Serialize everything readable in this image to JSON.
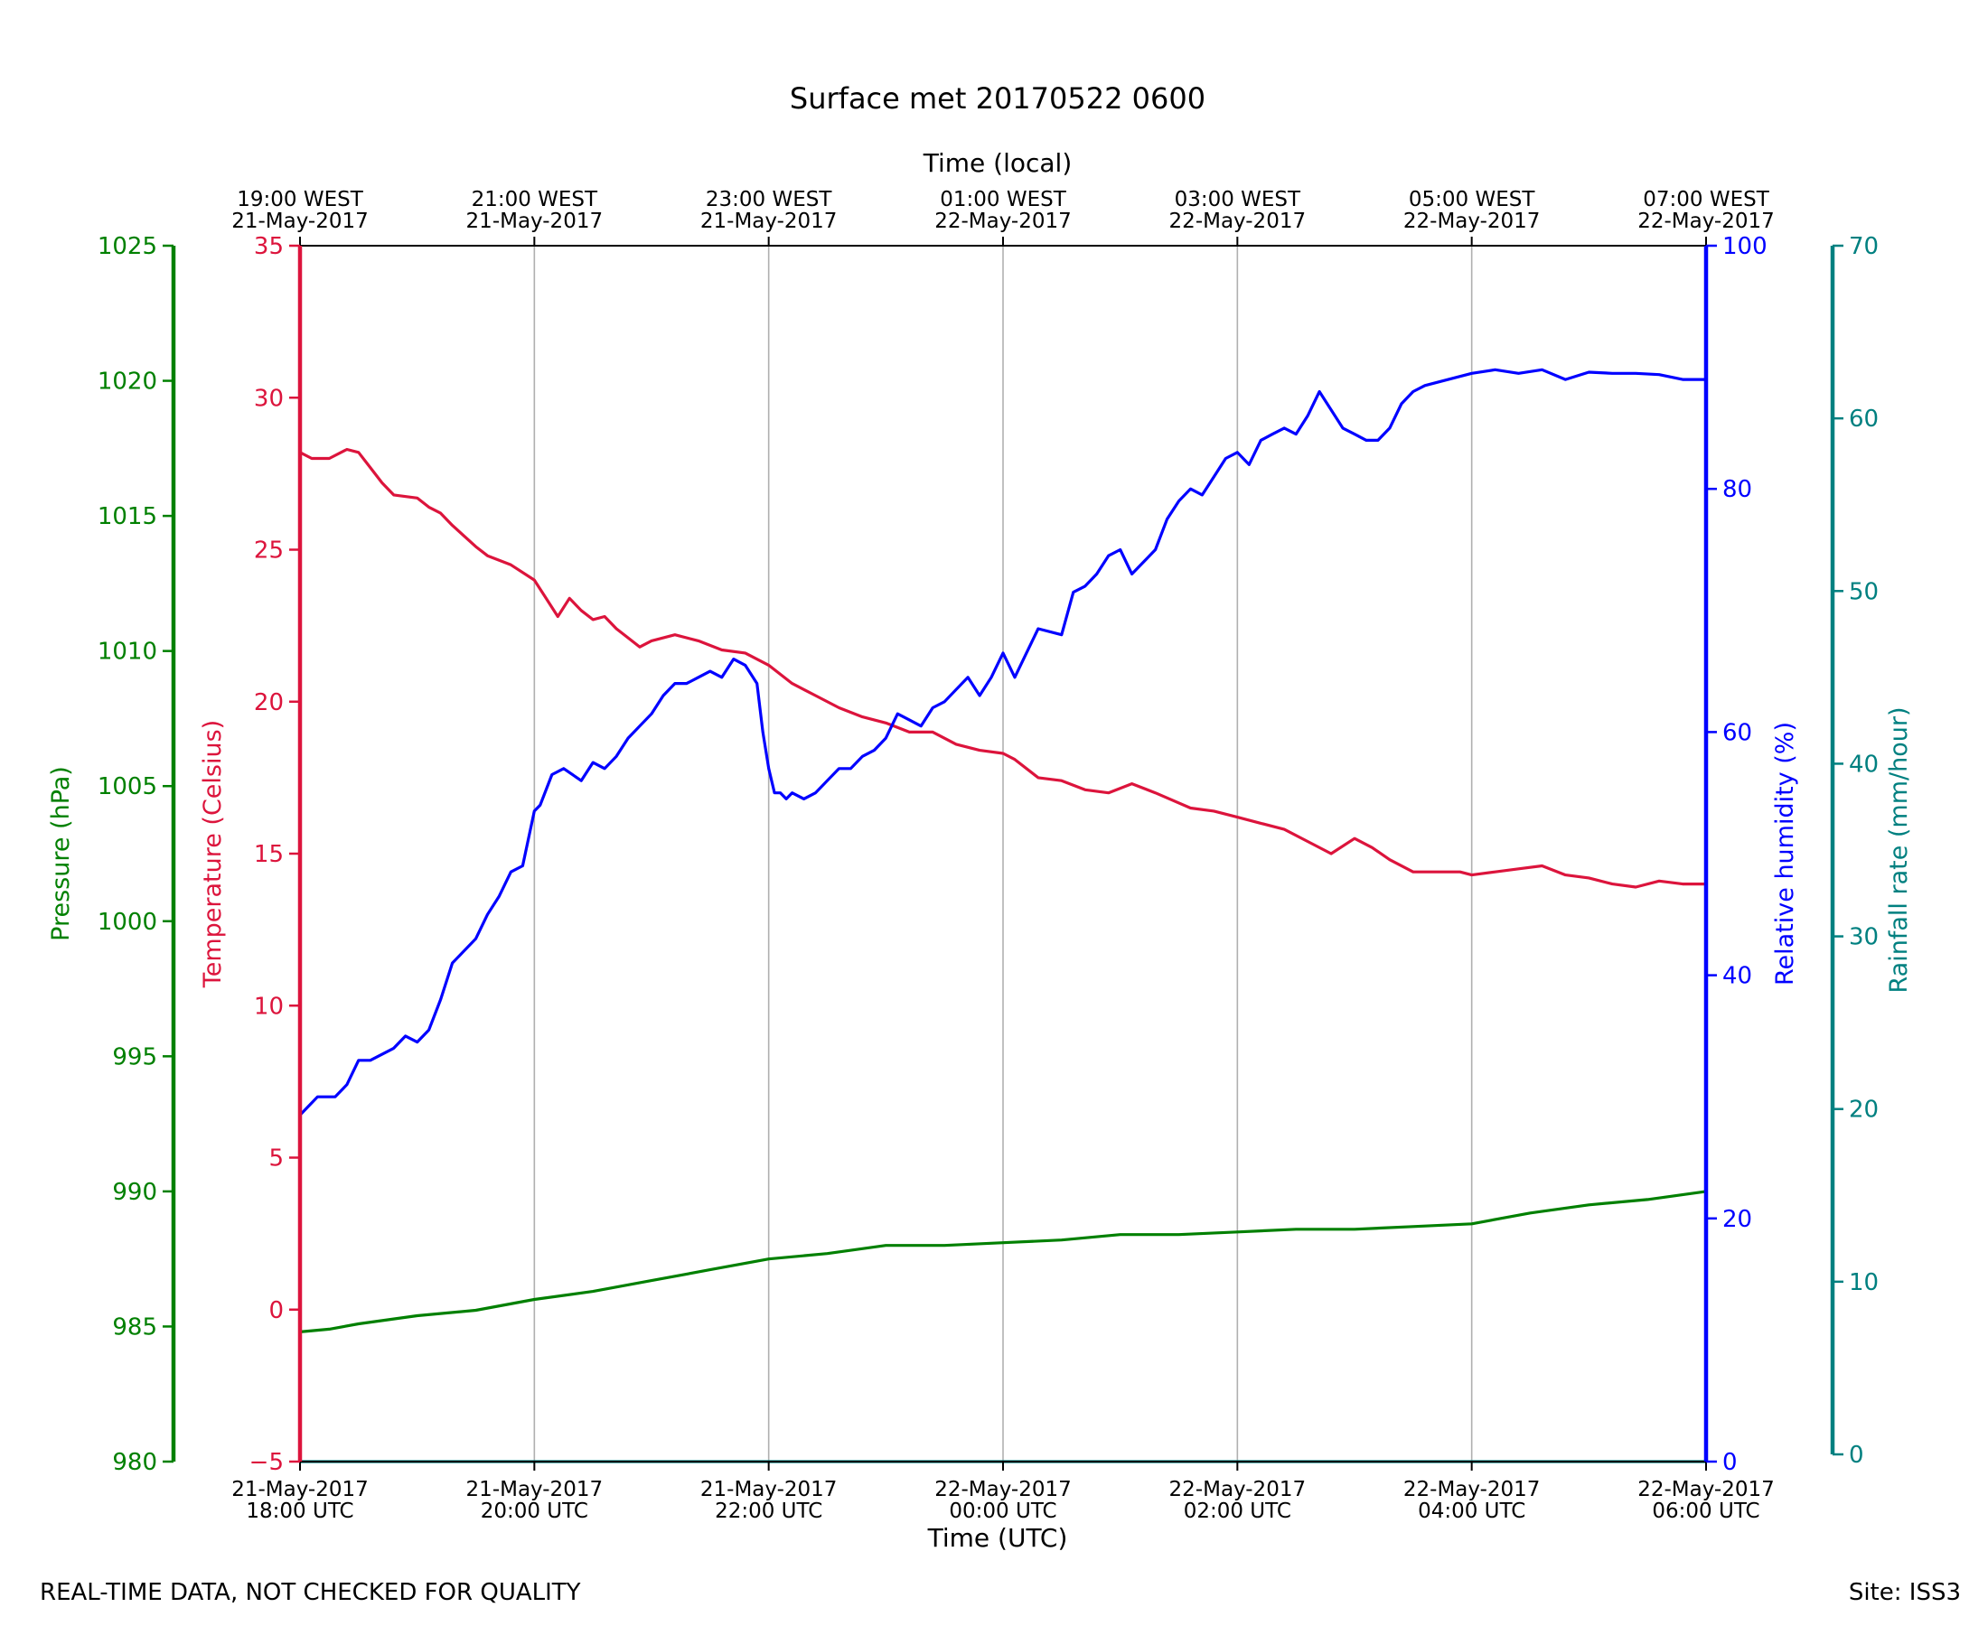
{
  "chart_data": {
    "type": "line",
    "title": "Surface met 20170522 0600",
    "top_axis_label": "Time (local)",
    "xlabel": "Time (UTC)",
    "x_ticks_utc": [
      {
        "hour": 0,
        "date": "21-May-2017",
        "time": "18:00 UTC"
      },
      {
        "hour": 2,
        "date": "21-May-2017",
        "time": "20:00 UTC"
      },
      {
        "hour": 4,
        "date": "21-May-2017",
        "time": "22:00 UTC"
      },
      {
        "hour": 6,
        "date": "22-May-2017",
        "time": "00:00 UTC"
      },
      {
        "hour": 8,
        "date": "22-May-2017",
        "time": "02:00 UTC"
      },
      {
        "hour": 10,
        "date": "22-May-2017",
        "time": "04:00 UTC"
      },
      {
        "hour": 12,
        "date": "22-May-2017",
        "time": "06:00 UTC"
      }
    ],
    "x_ticks_local": [
      {
        "hour": 0,
        "time": "19:00 WEST",
        "date": "21-May-2017"
      },
      {
        "hour": 2,
        "time": "21:00 WEST",
        "date": "21-May-2017"
      },
      {
        "hour": 4,
        "time": "23:00 WEST",
        "date": "21-May-2017"
      },
      {
        "hour": 6,
        "time": "01:00 WEST",
        "date": "22-May-2017"
      },
      {
        "hour": 8,
        "time": "03:00 WEST",
        "date": "22-May-2017"
      },
      {
        "hour": 10,
        "time": "05:00 WEST",
        "date": "22-May-2017"
      },
      {
        "hour": 12,
        "time": "07:00 WEST",
        "date": "22-May-2017"
      }
    ],
    "xlim": [
      0,
      12
    ],
    "grid_x": true,
    "axes": {
      "pressure": {
        "label": "Pressure (hPa)",
        "ylim": [
          980,
          1025
        ],
        "ticks": [
          980,
          985,
          990,
          995,
          1000,
          1005,
          1010,
          1015,
          1020,
          1025
        ],
        "color": "#008000"
      },
      "temperature": {
        "label": "Temperature (Celsius)",
        "ylim": [
          -5,
          35
        ],
        "ticks": [
          -5,
          0,
          5,
          10,
          15,
          20,
          25,
          30,
          35
        ],
        "color": "#dc143c"
      },
      "humidity": {
        "label": "Relative humidity (%)",
        "ylim": [
          0,
          100
        ],
        "ticks": [
          0,
          20,
          40,
          60,
          80,
          100
        ],
        "color": "#0000ff"
      },
      "rainfall": {
        "label": "Rainfall rate (mm/hour)",
        "ylim": [
          0,
          70
        ],
        "ticks": [
          0,
          10,
          20,
          30,
          40,
          50,
          60,
          70
        ],
        "color": "#008080"
      }
    },
    "series": [
      {
        "axis": "temperature",
        "color": "#dc143c",
        "x": [
          0,
          0.1,
          0.25,
          0.4,
          0.5,
          0.6,
          0.7,
          0.8,
          1.0,
          1.1,
          1.2,
          1.3,
          1.5,
          1.6,
          1.8,
          2.0,
          2.1,
          2.2,
          2.3,
          2.4,
          2.5,
          2.6,
          2.7,
          2.8,
          2.9,
          3.0,
          3.1,
          3.2,
          3.4,
          3.6,
          3.8,
          4.0,
          4.2,
          4.4,
          4.6,
          4.8,
          5.0,
          5.2,
          5.4,
          5.6,
          5.8,
          6.0,
          6.1,
          6.3,
          6.5,
          6.7,
          6.9,
          7.1,
          7.3,
          7.6,
          7.8,
          8.0,
          8.2,
          8.4,
          8.6,
          8.8,
          9.0,
          9.15,
          9.3,
          9.5,
          9.7,
          9.9,
          10.0,
          10.2,
          10.4,
          10.6,
          10.8,
          11.0,
          11.2,
          11.4,
          11.6,
          11.8,
          12.0
        ],
        "values": [
          28.2,
          28.0,
          28.0,
          28.3,
          28.2,
          27.7,
          27.2,
          26.8,
          26.7,
          26.4,
          26.2,
          25.8,
          25.1,
          24.8,
          24.5,
          24.0,
          23.4,
          22.8,
          23.4,
          23.0,
          22.7,
          22.8,
          22.4,
          22.1,
          21.8,
          22.0,
          22.1,
          22.2,
          22.0,
          21.7,
          21.6,
          21.2,
          20.6,
          20.2,
          19.8,
          19.5,
          19.3,
          19.0,
          19.0,
          18.6,
          18.4,
          18.3,
          18.1,
          17.5,
          17.4,
          17.1,
          17.0,
          17.3,
          17.0,
          16.5,
          16.4,
          16.2,
          16.0,
          15.8,
          15.4,
          15.0,
          15.5,
          15.2,
          14.8,
          14.4,
          14.4,
          14.4,
          14.3,
          14.4,
          14.5,
          14.6,
          14.3,
          14.2,
          14.0,
          13.9,
          14.1,
          14.0,
          14.0
        ]
      },
      {
        "axis": "humidity",
        "color": "#0000ff",
        "x": [
          0,
          0.15,
          0.3,
          0.4,
          0.5,
          0.6,
          0.8,
          0.9,
          1.0,
          1.1,
          1.2,
          1.3,
          1.4,
          1.5,
          1.6,
          1.7,
          1.8,
          1.9,
          2.0,
          2.05,
          2.15,
          2.25,
          2.4,
          2.5,
          2.6,
          2.7,
          2.8,
          2.9,
          3.0,
          3.1,
          3.2,
          3.3,
          3.4,
          3.5,
          3.6,
          3.7,
          3.8,
          3.9,
          3.95,
          4.0,
          4.05,
          4.1,
          4.15,
          4.2,
          4.3,
          4.4,
          4.5,
          4.6,
          4.7,
          4.8,
          4.9,
          5.0,
          5.1,
          5.2,
          5.3,
          5.4,
          5.5,
          5.6,
          5.7,
          5.8,
          5.9,
          6.0,
          6.1,
          6.2,
          6.3,
          6.5,
          6.6,
          6.7,
          6.8,
          6.9,
          7.0,
          7.1,
          7.2,
          7.3,
          7.4,
          7.5,
          7.6,
          7.7,
          7.8,
          7.9,
          8.0,
          8.1,
          8.2,
          8.3,
          8.4,
          8.5,
          8.6,
          8.7,
          8.8,
          8.9,
          9.0,
          9.1,
          9.2,
          9.3,
          9.4,
          9.5,
          9.6,
          9.8,
          10.0,
          10.2,
          10.4,
          10.6,
          10.8,
          11.0,
          11.2,
          11.4,
          11.6,
          11.8,
          12.0
        ],
        "values": [
          28.5,
          30.0,
          30.0,
          31.0,
          33.0,
          33.0,
          34.0,
          35.0,
          34.5,
          35.5,
          38.0,
          41.0,
          42.0,
          43.0,
          45.0,
          46.5,
          48.5,
          49.0,
          53.5,
          54.0,
          56.5,
          57.0,
          56.0,
          57.5,
          57.0,
          58.0,
          59.5,
          60.5,
          61.5,
          63.0,
          64.0,
          64.0,
          64.5,
          65.0,
          64.5,
          66.0,
          65.5,
          64.0,
          60.0,
          57.0,
          55.0,
          55.0,
          54.5,
          55.0,
          54.5,
          55.0,
          56.0,
          57.0,
          57.0,
          58.0,
          58.5,
          59.5,
          61.5,
          61.0,
          60.5,
          62.0,
          62.5,
          63.5,
          64.5,
          63.0,
          64.5,
          66.5,
          64.5,
          66.5,
          68.5,
          68.0,
          71.5,
          72.0,
          73.0,
          74.5,
          75.0,
          73.0,
          74.0,
          75.0,
          77.5,
          79.0,
          80.0,
          79.5,
          81.0,
          82.5,
          83.0,
          82.0,
          84.0,
          84.5,
          85.0,
          84.5,
          86.0,
          88.0,
          86.5,
          85.0,
          84.5,
          84.0,
          84.0,
          85.0,
          87.0,
          88.0,
          88.5,
          89.0,
          89.5,
          89.8,
          89.5,
          89.8,
          89.0,
          89.6,
          89.5,
          89.5,
          89.4,
          89.0,
          89.0
        ]
      },
      {
        "axis": "pressure",
        "color": "#008000",
        "x": [
          0,
          0.25,
          0.5,
          1.0,
          1.5,
          2.0,
          2.5,
          3.0,
          3.5,
          4.0,
          4.5,
          5.0,
          5.5,
          6.0,
          6.5,
          7.0,
          7.5,
          8.0,
          8.5,
          9.0,
          9.5,
          10.0,
          10.5,
          11.0,
          11.5,
          12.0
        ],
        "values": [
          984.8,
          984.9,
          985.1,
          985.4,
          985.6,
          986.0,
          986.3,
          986.7,
          987.1,
          987.5,
          987.7,
          988.0,
          988.0,
          988.1,
          988.2,
          988.4,
          988.4,
          988.5,
          988.6,
          988.6,
          988.7,
          988.8,
          989.2,
          989.5,
          989.7,
          990.0
        ]
      },
      {
        "axis": "rainfall",
        "color": "#008080",
        "x": [
          0,
          12
        ],
        "values": [
          0,
          0
        ]
      }
    ],
    "legend": "none"
  },
  "footer": {
    "left": "REAL-TIME DATA, NOT CHECKED FOR QUALITY",
    "right": "Site: ISS3"
  }
}
